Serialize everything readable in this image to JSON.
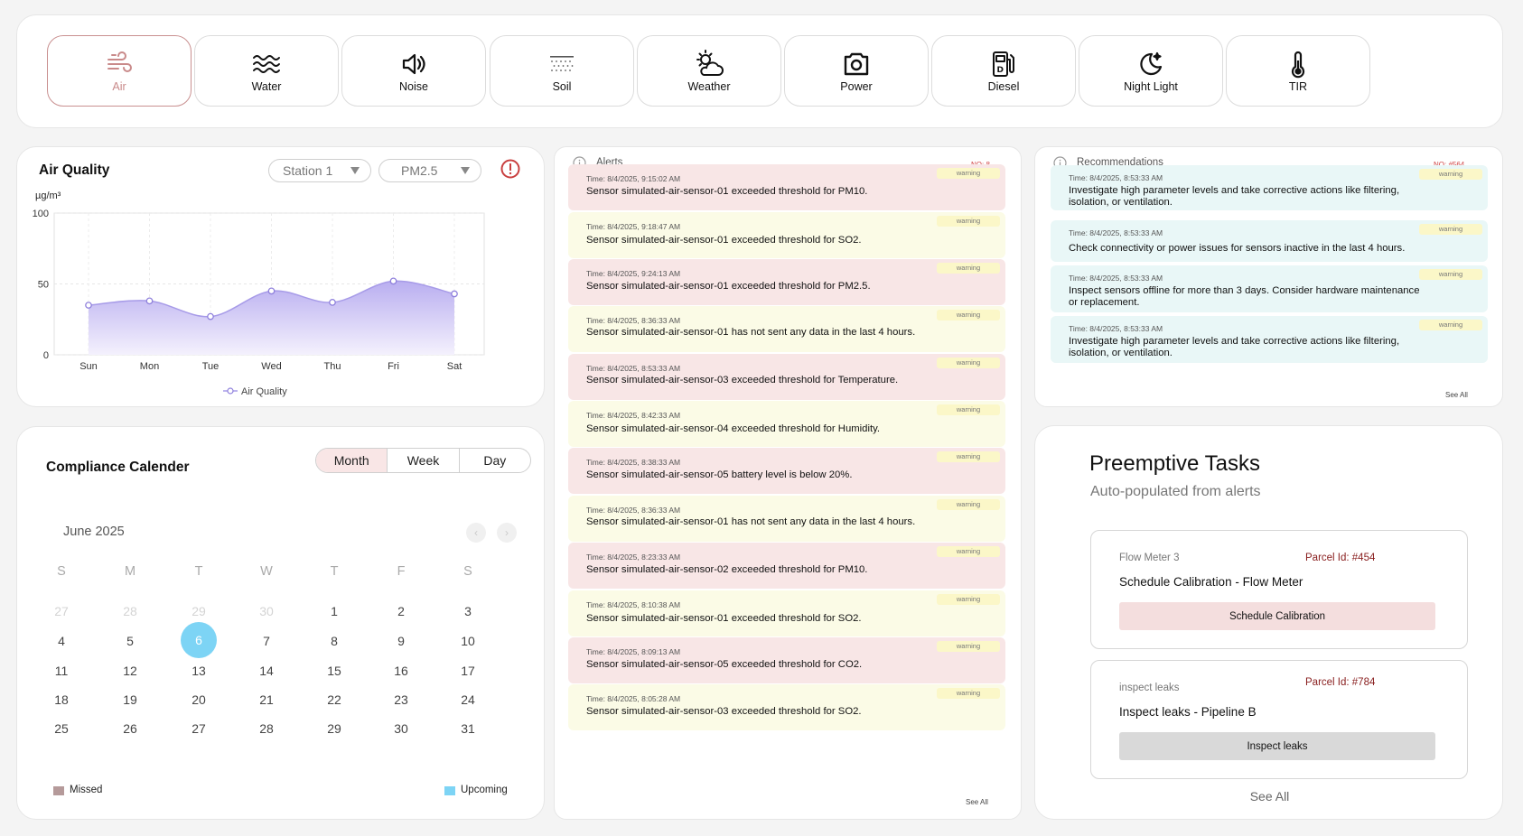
{
  "categories": [
    {
      "label": "Air",
      "icon": "wind-icon",
      "active": true
    },
    {
      "label": "Water",
      "icon": "waves-icon",
      "active": false
    },
    {
      "label": "Noise",
      "icon": "speaker-icon",
      "active": false
    },
    {
      "label": "Soil",
      "icon": "soil-icon",
      "active": false
    },
    {
      "label": "Weather",
      "icon": "sun-cloud-icon",
      "active": false
    },
    {
      "label": "Power",
      "icon": "power-icon",
      "active": false
    },
    {
      "label": "Diesel",
      "icon": "fuel-pump-icon",
      "active": false
    },
    {
      "label": "Night Light",
      "icon": "moon-star-icon",
      "active": false
    },
    {
      "label": "TIR",
      "icon": "thermometer-icon",
      "active": false
    }
  ],
  "air_quality": {
    "title": "Air Quality",
    "station_select": "Station 1",
    "pollutant_select": "PM2.5",
    "unit_label": "µg/m³"
  },
  "chart_data": {
    "type": "area",
    "categories": [
      "Sun",
      "Mon",
      "Tue",
      "Wed",
      "Thu",
      "Fri",
      "Sat"
    ],
    "series": [
      {
        "name": "Air Quality",
        "values": [
          35,
          38,
          27,
          45,
          37,
          52,
          43
        ]
      }
    ],
    "ylim": [
      0,
      100
    ],
    "yticks": [
      0,
      50,
      100
    ],
    "grid": true,
    "legend": "bottom",
    "colors": {
      "line": "#a79be8",
      "point": "#8f80dc",
      "fill_top": "#b9aef0",
      "fill_bottom": "#f4f1fd"
    }
  },
  "calendar": {
    "title": "Compliance Calender",
    "views": [
      {
        "label": "Month",
        "selected": true
      },
      {
        "label": "Week",
        "selected": false
      },
      {
        "label": "Day",
        "selected": false
      }
    ],
    "month_label": "June 2025",
    "prev_arrow": "‹",
    "next_arrow": "›",
    "weekdays": [
      "S",
      "M",
      "T",
      "W",
      "T",
      "F",
      "S"
    ],
    "weeks": [
      [
        {
          "d": "27",
          "muted": true
        },
        {
          "d": "28",
          "muted": true
        },
        {
          "d": "29",
          "muted": true
        },
        {
          "d": "30",
          "muted": true
        },
        {
          "d": "1"
        },
        {
          "d": "2"
        },
        {
          "d": "3"
        }
      ],
      [
        {
          "d": "4"
        },
        {
          "d": "5"
        },
        {
          "d": "6",
          "today": true
        },
        {
          "d": "7"
        },
        {
          "d": "8"
        },
        {
          "d": "9"
        },
        {
          "d": "10"
        }
      ],
      [
        {
          "d": "11"
        },
        {
          "d": "12"
        },
        {
          "d": "13"
        },
        {
          "d": "14"
        },
        {
          "d": "15"
        },
        {
          "d": "16"
        },
        {
          "d": "17"
        }
      ],
      [
        {
          "d": "18"
        },
        {
          "d": "19"
        },
        {
          "d": "20"
        },
        {
          "d": "21"
        },
        {
          "d": "22"
        },
        {
          "d": "23"
        },
        {
          "d": "24"
        }
      ],
      [
        {
          "d": "25"
        },
        {
          "d": "26"
        },
        {
          "d": "27"
        },
        {
          "d": "28"
        },
        {
          "d": "29"
        },
        {
          "d": "30"
        },
        {
          "d": "31"
        }
      ]
    ],
    "legend": [
      {
        "label": "Missed",
        "color": "#b59a9a"
      },
      {
        "label": "Upcoming",
        "color": "#7dd4f5"
      }
    ]
  },
  "alerts": {
    "title": "Alerts",
    "count_label": "NO: 8",
    "see_all": "See All",
    "items": [
      {
        "time": "Time: 8/4/2025, 9:15:02 AM",
        "message": "Sensor simulated-air-sensor-01 exceeded threshold for PM10.",
        "level": "warning",
        "tone": "red"
      },
      {
        "time": "Time: 8/4/2025, 9:18:47 AM",
        "message": "Sensor simulated-air-sensor-01 exceeded threshold for SO2.",
        "level": "warning",
        "tone": "yel"
      },
      {
        "time": "Time: 8/4/2025, 9:24:13 AM",
        "message": "Sensor simulated-air-sensor-01 exceeded threshold for PM2.5.",
        "level": "warning",
        "tone": "red"
      },
      {
        "time": "Time: 8/4/2025, 8:36:33 AM",
        "message": "Sensor simulated-air-sensor-01 has not sent any data in the last 4 hours.",
        "level": "warning",
        "tone": "yel"
      },
      {
        "time": "Time: 8/4/2025, 8:53:33 AM",
        "message": "Sensor simulated-air-sensor-03 exceeded threshold for Temperature.",
        "level": "warning",
        "tone": "red"
      },
      {
        "time": "Time: 8/4/2025, 8:42:33 AM",
        "message": "Sensor simulated-air-sensor-04 exceeded threshold for Humidity.",
        "level": "warning",
        "tone": "yel"
      },
      {
        "time": "Time: 8/4/2025, 8:38:33 AM",
        "message": "Sensor simulated-air-sensor-05 battery level is below 20%.",
        "level": "warning",
        "tone": "red"
      },
      {
        "time": "Time: 8/4/2025, 8:36:33 AM",
        "message": "Sensor simulated-air-sensor-01 has not sent any data in the last 4 hours.",
        "level": "warning",
        "tone": "yel"
      },
      {
        "time": "Time: 8/4/2025, 8:23:33 AM",
        "message": "Sensor simulated-air-sensor-02 exceeded threshold for PM10.",
        "level": "warning",
        "tone": "red"
      },
      {
        "time": "Time: 8/4/2025, 8:10:38 AM",
        "message": "Sensor simulated-air-sensor-01 exceeded threshold for SO2.",
        "level": "warning",
        "tone": "yel"
      },
      {
        "time": "Time: 8/4/2025, 8:09:13 AM",
        "message": "Sensor simulated-air-sensor-05 exceeded threshold for CO2.",
        "level": "warning",
        "tone": "red"
      },
      {
        "time": "Time: 8/4/2025, 8:05:28 AM",
        "message": "Sensor simulated-air-sensor-03 exceeded threshold for SO2.",
        "level": "warning",
        "tone": "yel"
      }
    ]
  },
  "recommendations": {
    "title": "Recommendations",
    "count_label": "NO: #564",
    "see_all": "See All",
    "items": [
      {
        "time": "Time: 8/4/2025, 8:53:33 AM",
        "message": "Investigate high parameter levels and take corrective actions like filtering, isolation, or ventilation.",
        "level": "warning"
      },
      {
        "time": "Time: 8/4/2025, 8:53:33 AM",
        "message": "Check connectivity or power issues for sensors inactive in the last 4 hours.",
        "level": "warning"
      },
      {
        "time": "Time: 8/4/2025, 8:53:33 AM",
        "message": "Inspect sensors offline for more than 3 days. Consider hardware maintenance or replacement.",
        "level": "warning"
      },
      {
        "time": "Time: 8/4/2025, 8:53:33 AM",
        "message": "Investigate high parameter levels and take corrective actions like filtering, isolation, or ventilation.",
        "level": "warning"
      }
    ]
  },
  "tasks": {
    "title": "Preemptive Tasks",
    "subtitle": "Auto-populated from alerts",
    "see_all": "See All",
    "items": [
      {
        "source": "Flow Meter 3",
        "parcel": "Parcel Id: #454",
        "name": "Schedule Calibration - Flow Meter",
        "action": "Schedule Calibration",
        "action_color": "#f4dede"
      },
      {
        "source": "inspect leaks",
        "parcel": "Parcel Id: #784",
        "name": "Inspect leaks - Pipeline B",
        "action": "Inspect leaks",
        "action_color": "#d9d9d9"
      }
    ]
  }
}
